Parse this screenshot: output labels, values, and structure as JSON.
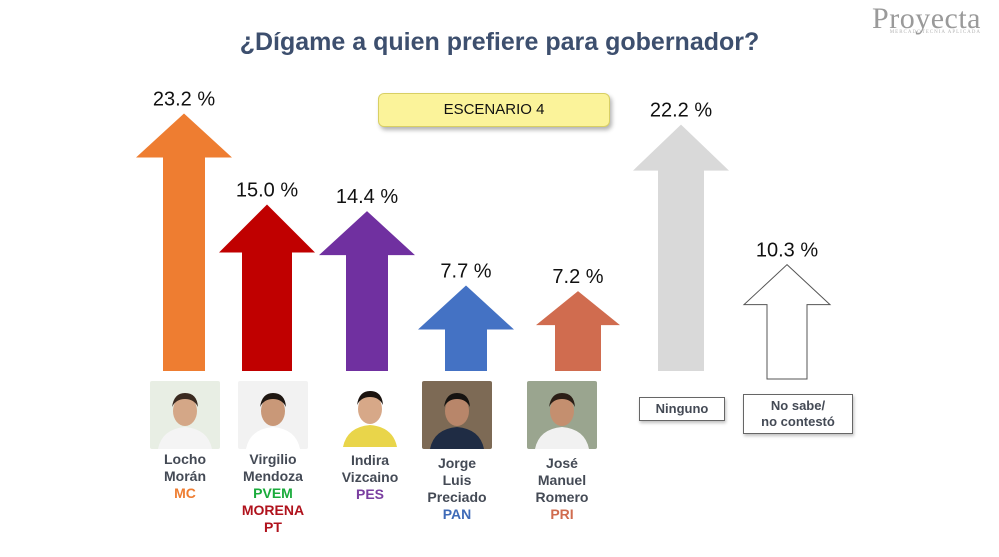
{
  "title": "¿Dígame a quien prefiere para gobernador?",
  "logo": {
    "text": "Proyecta",
    "tagline": "MERCADOTECNIA APLICADA"
  },
  "scenario_label": "ESCENARIO 4",
  "candidates": [
    {
      "name_lines": [
        "Locho",
        "Morán"
      ],
      "parties": [
        {
          "name": "MC",
          "color": "#ee7d31"
        }
      ]
    },
    {
      "name_lines": [
        "Virgilio",
        "Mendoza"
      ],
      "parties": [
        {
          "name": "PVEM",
          "color": "#1aab3b"
        },
        {
          "name": "MORENA",
          "color": "#b0121c"
        },
        {
          "name": "PT",
          "color": "#b0121c"
        }
      ]
    },
    {
      "name_lines": [
        "Indira",
        "Vizcaino"
      ],
      "parties": [
        {
          "name": "PES",
          "color": "#7a3ea0"
        }
      ]
    },
    {
      "name_lines": [
        "Jorge",
        "Luis",
        "Preciado"
      ],
      "parties": [
        {
          "name": "PAN",
          "color": "#3e6ab7"
        }
      ]
    },
    {
      "name_lines": [
        "José",
        "Manuel",
        "Romero"
      ],
      "parties": [
        {
          "name": "PRI",
          "color": "#d06c4f"
        }
      ]
    }
  ],
  "box_labels": [
    "Ninguno",
    "No sabe/\nno contestó"
  ],
  "chart_data": {
    "type": "bar",
    "categories": [
      "Locho Morán",
      "Virgilio Mendoza",
      "Indira Vizcaino",
      "Jorge Luis Preciado",
      "José Manuel Romero",
      "Ninguno",
      "No sabe/ no contestó"
    ],
    "values": [
      23.2,
      15.0,
      14.4,
      7.7,
      7.2,
      22.2,
      10.3
    ],
    "value_labels": [
      "23.2 %",
      "15.0 %",
      "14.4 %",
      "7.7 %",
      "7.2 %",
      "22.2 %",
      "10.3 %"
    ],
    "colors": [
      "#ee7d31",
      "#c00000",
      "#7030a0",
      "#4472c4",
      "#d06c4f",
      "#d9d9d9",
      "#ffffff"
    ],
    "title": "¿Dígame a quien prefiere para gobernador?",
    "xlabel": "",
    "ylabel": ""
  }
}
